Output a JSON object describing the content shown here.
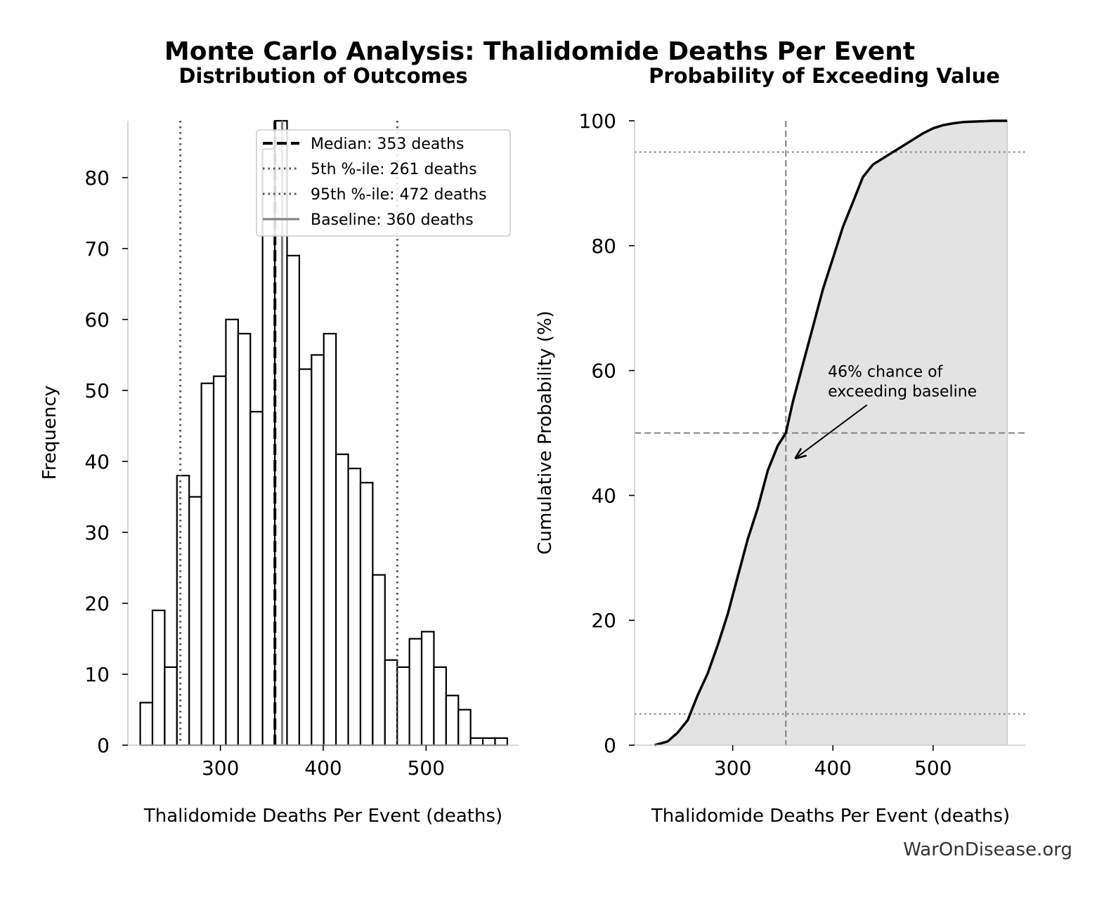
{
  "figure": {
    "suptitle": "Monte Carlo Analysis: Thalidomide Deaths Per Event",
    "watermark": "WarOnDisease.org"
  },
  "chart_data": [
    {
      "type": "bar",
      "title": "Distribution of Outcomes",
      "xlabel": "Thalidomide Deaths Per Event (deaths)",
      "ylabel": "Frequency",
      "xlim": [
        210,
        590
      ],
      "ylim": [
        0,
        88
      ],
      "xticks": [
        300,
        400,
        500
      ],
      "yticks": [
        0,
        10,
        20,
        30,
        40,
        50,
        60,
        70,
        80
      ],
      "grid": false,
      "bin_width": 11.9,
      "bin_starts": [
        222,
        233.9,
        245.8,
        257.7,
        269.6,
        281.5,
        293.4,
        305.3,
        317.2,
        329.1,
        341,
        352.9,
        364.8,
        376.7,
        388.6,
        400.5,
        412.4,
        424.3,
        436.2,
        448.1,
        460,
        471.9,
        483.8,
        495.7,
        507.6,
        519.5,
        531.4,
        543.3,
        555.2,
        567.1
      ],
      "values": [
        6,
        19,
        11,
        38,
        35,
        51,
        52,
        60,
        58,
        47,
        84,
        89,
        69,
        53,
        55,
        58,
        41,
        39,
        37,
        24,
        12,
        11,
        15,
        16,
        11,
        7,
        5,
        1,
        1,
        1
      ],
      "reference_lines": [
        {
          "x": 353,
          "style": "dashed",
          "color": "#000000",
          "label": "Median: 353 deaths"
        },
        {
          "x": 261,
          "style": "dotted",
          "color": "#555555",
          "label": "5th %-ile: 261 deaths"
        },
        {
          "x": 472,
          "style": "dotted",
          "color": "#555555",
          "label": "95th %-ile: 472 deaths"
        },
        {
          "x": 360,
          "style": "solid",
          "color": "#808080",
          "label": "Baseline: 360 deaths"
        }
      ],
      "legend_position": "top-right"
    },
    {
      "type": "area",
      "title": "Probability of Exceeding Value",
      "xlabel": "Thalidomide Deaths Per Event (deaths)",
      "ylabel": "Cumulative Probability (%)",
      "xlim": [
        202,
        592
      ],
      "ylim": [
        0,
        100
      ],
      "xticks": [
        300,
        400,
        500
      ],
      "yticks": [
        0,
        20,
        40,
        60,
        80,
        100
      ],
      "grid": false,
      "x": [
        222,
        235,
        245,
        255,
        265,
        275,
        285,
        295,
        305,
        315,
        325,
        335,
        345,
        353,
        360,
        370,
        380,
        390,
        400,
        410,
        420,
        430,
        440,
        450,
        460,
        470,
        480,
        490,
        500,
        510,
        520,
        530,
        545,
        560,
        574
      ],
      "y": [
        0,
        0.6,
        2,
        4,
        8,
        11.5,
        16,
        21,
        27,
        33,
        38,
        44,
        48,
        50,
        55,
        61,
        67,
        73,
        78,
        83,
        87,
        91,
        93,
        94,
        95,
        96,
        97,
        98,
        98.8,
        99.3,
        99.6,
        99.8,
        99.9,
        100,
        100
      ],
      "hlines": [
        {
          "y": 95,
          "style": "dotted"
        },
        {
          "y": 50,
          "style": "dashed"
        },
        {
          "y": 5,
          "style": "dotted"
        }
      ],
      "vline": {
        "x": 353,
        "style": "dashed"
      },
      "annotation": {
        "lines": [
          "46% chance of",
          "exceeding baseline"
        ],
        "text_at": [
          395,
          59
        ],
        "arrow_from": [
          434,
          54.5
        ],
        "arrow_to": [
          363,
          46
        ]
      }
    }
  ]
}
